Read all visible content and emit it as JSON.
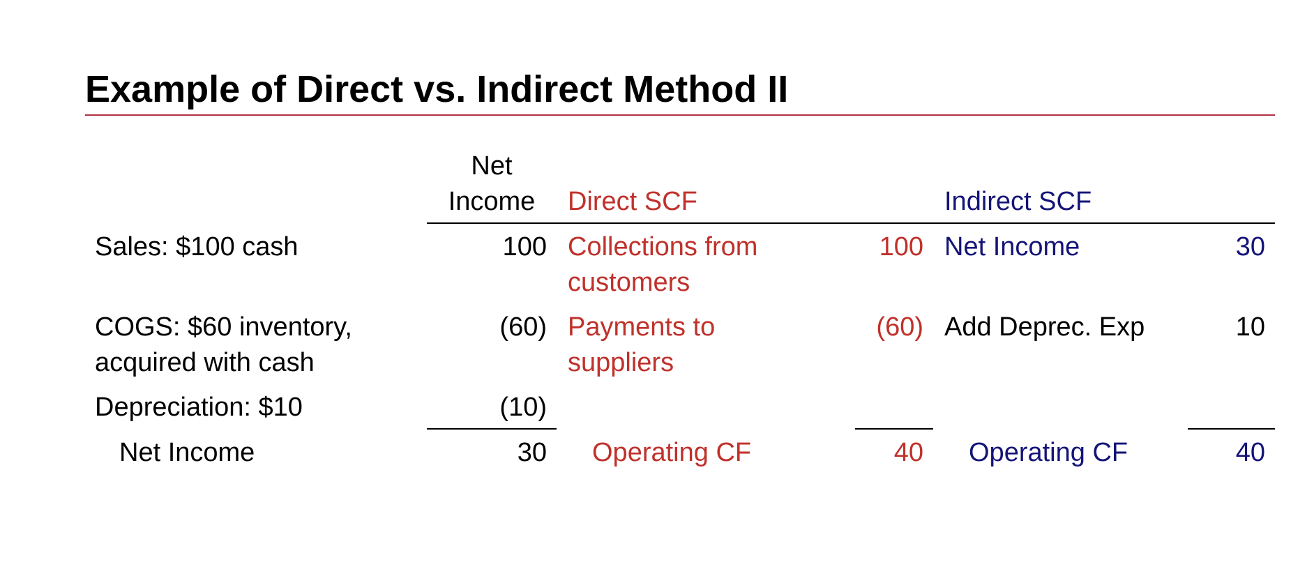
{
  "title": "Example of Direct vs. Indirect Method II",
  "colors": {
    "direct": "#c0312b",
    "indirect": "#141478",
    "title_rule": "#b03040"
  },
  "headers": {
    "net_income_line1": "Net",
    "net_income_line2": "Income",
    "direct": "Direct SCF",
    "indirect": "Indirect SCF"
  },
  "rows": {
    "sales": {
      "label": "Sales: $100 cash",
      "ni": "100",
      "direct_label_1": "Collections from",
      "direct_label_2": "customers",
      "direct_value": "100",
      "indirect_label": "Net Income",
      "indirect_value": "30"
    },
    "cogs": {
      "label_1": "COGS: $60 inventory,",
      "label_2": "acquired with cash",
      "ni": "(60)",
      "direct_label_1": "Payments to",
      "direct_label_2": "suppliers",
      "direct_value": "(60)",
      "indirect_label": "Add Deprec. Exp",
      "indirect_value": "10"
    },
    "depreciation": {
      "label": "Depreciation: $10",
      "ni": "(10)"
    },
    "total": {
      "label": "Net Income",
      "ni": "30",
      "direct_label": "Operating CF",
      "direct_value": "40",
      "indirect_label": "Operating CF",
      "indirect_value": "40"
    }
  }
}
